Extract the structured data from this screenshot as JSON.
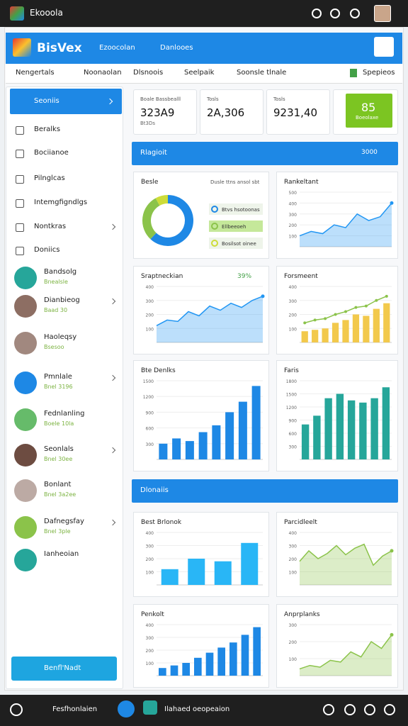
{
  "status": {
    "app": "Ekooola"
  },
  "header": {
    "brand": "BisVex",
    "tabs": [
      "Ezoocolan",
      "Danlooes"
    ]
  },
  "nav": {
    "items": [
      "Nengertals",
      "Noonaolan",
      "Dlsnoois",
      "Seelpaik",
      "Soonsle tlnale"
    ],
    "action": "Spepieos"
  },
  "sidebar": {
    "active": "Seoniis",
    "items": [
      "Beralks",
      "Bociianoe",
      "Pilnglcas",
      "Intemgfigndlgs",
      "Nontkras",
      "Doniics"
    ],
    "people": [
      {
        "name": "Bandsolg",
        "sub": "Bnealsle"
      },
      {
        "name": "Dianbieog",
        "sub": "Baad 30"
      },
      {
        "name": "Haoleqsy",
        "sub": "Bsesoo"
      },
      {
        "name": "Pmnlale",
        "sub": "Bnel 3196"
      },
      {
        "name": "Fednlanling",
        "sub": "Boele 10la"
      },
      {
        "name": "Seonlals",
        "sub": "Bnel 30ee"
      },
      {
        "name": "Bonlant",
        "sub": "Bnel 3a2ee"
      },
      {
        "name": "Dafnegsfay",
        "sub": "Bnel 3ple"
      },
      {
        "name": "Ianheoian"
      }
    ],
    "button": "Benfl'Nadt"
  },
  "stats": [
    {
      "label": "Boale Bassbealll",
      "value": "323A9",
      "sub": "Bt3Ds"
    },
    {
      "label": "Tosls",
      "value": "2A,306"
    },
    {
      "label": "Tosls",
      "value": "9231,40"
    },
    {
      "value": "85",
      "sub": "Boeolaxe"
    }
  ],
  "sections": [
    {
      "title": "Rlagioit",
      "action": "3000"
    },
    {
      "title": "Dlonaiis"
    }
  ],
  "panels": [
    {
      "type": "donut",
      "title": "Besle",
      "subtitle": "Dusle ttns ansol sbt",
      "values": [
        62,
        30,
        8
      ],
      "colors": [
        "#1e88e5",
        "#8bc34a",
        "#cddc39"
      ],
      "labels": [
        "Btvs hsotoonas",
        "Ellbeeoeh",
        "Bosilsot oinee"
      ]
    },
    {
      "type": "area",
      "title": "Rankeltant",
      "color": "#2196f3",
      "values": [
        100,
        140,
        120,
        200,
        175,
        300,
        240,
        275,
        400
      ],
      "ylim": [
        0,
        500
      ],
      "yticks": [
        100,
        200,
        300,
        400,
        500
      ]
    },
    {
      "type": "area",
      "title": "Sraptneckian",
      "badge": "39%",
      "color": "#2196f3",
      "values": [
        120,
        160,
        150,
        220,
        190,
        260,
        230,
        280,
        250,
        300,
        330
      ],
      "ylim": [
        0,
        400
      ],
      "yticks": [
        100,
        200,
        300,
        400
      ]
    },
    {
      "type": "barsline",
      "title": "Forsmeent",
      "color": "#f2c94c",
      "lineColor": "#8bc34a",
      "values": [
        80,
        90,
        100,
        140,
        160,
        200,
        190,
        240,
        280
      ],
      "line": [
        140,
        160,
        170,
        200,
        220,
        250,
        260,
        300,
        330
      ],
      "ylim": [
        0,
        400
      ],
      "yticks": [
        100,
        200,
        300,
        400
      ]
    },
    {
      "type": "bars",
      "title": "Bte Denlks",
      "color": "#1e88e5",
      "values": [
        300,
        400,
        350,
        520,
        650,
        900,
        1100,
        1400
      ],
      "ylim": [
        0,
        1500
      ],
      "yticks": [
        300,
        600,
        900,
        1200,
        1500
      ]
    },
    {
      "type": "bars",
      "title": "Faris",
      "color": "#26a69a",
      "values": [
        800,
        1000,
        1400,
        1500,
        1350,
        1300,
        1400,
        1650
      ],
      "ylim": [
        0,
        1800
      ],
      "yticks": [
        300,
        600,
        900,
        1200,
        1500,
        1800
      ]
    },
    {
      "type": "bars",
      "title": "Best Brlonok",
      "color": "#29b6f6",
      "values": [
        120,
        200,
        180,
        320
      ],
      "ylim": [
        0,
        400
      ],
      "yticks": [
        100,
        200,
        300,
        400
      ]
    },
    {
      "type": "area",
      "title": "Parcidleelt",
      "color": "#8bc34a",
      "values": [
        180,
        260,
        200,
        240,
        300,
        230,
        280,
        310,
        150,
        220,
        260
      ],
      "ylim": [
        0,
        400
      ],
      "yticks": [
        100,
        200,
        300,
        400
      ]
    },
    {
      "type": "bars",
      "title": "Penkolt",
      "color": "#1e88e5",
      "values": [
        60,
        80,
        100,
        140,
        180,
        220,
        260,
        320,
        380
      ],
      "ylim": [
        0,
        400
      ],
      "yticks": [
        100,
        200,
        300,
        400
      ]
    },
    {
      "type": "area",
      "title": "Anprplanks",
      "color": "#8bc34a",
      "values": [
        40,
        60,
        50,
        90,
        80,
        140,
        110,
        200,
        160,
        240
      ],
      "ylim": [
        0,
        300
      ],
      "yticks": [
        100,
        200,
        300
      ]
    }
  ],
  "footer": {
    "left": "Fesfhonlaien",
    "right": "Ilahaed oeopeaion"
  }
}
